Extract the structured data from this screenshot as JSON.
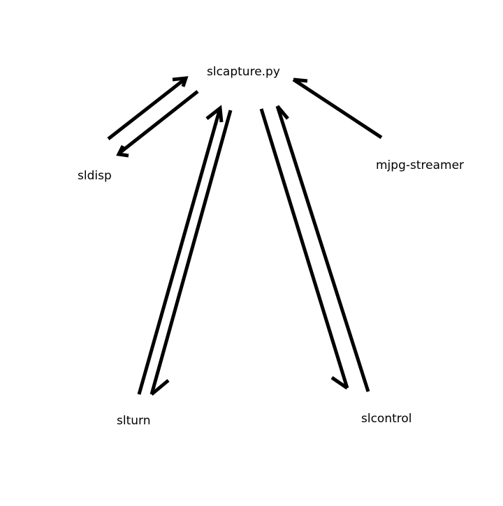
{
  "diagram": {
    "nodes": {
      "center": "slcapture.py",
      "sldisp": "sldisp",
      "mjpg_streamer": "mjpg-streamer",
      "slturn": "slturn",
      "slcontrol": "slcontrol"
    },
    "edges": [
      {
        "from": "sldisp",
        "to": "slcapture.py"
      },
      {
        "from": "slcapture.py",
        "to": "sldisp"
      },
      {
        "from": "mjpg-streamer",
        "to": "slcapture.py"
      },
      {
        "from": "slturn",
        "to": "slcapture.py"
      },
      {
        "from": "slcapture.py",
        "to": "slturn"
      },
      {
        "from": "slcapture.py",
        "to": "slcontrol"
      },
      {
        "from": "slcontrol",
        "to": "slcapture.py"
      }
    ],
    "colors": {
      "stroke": "#000000",
      "text": "#000000",
      "background": "#ffffff"
    }
  }
}
